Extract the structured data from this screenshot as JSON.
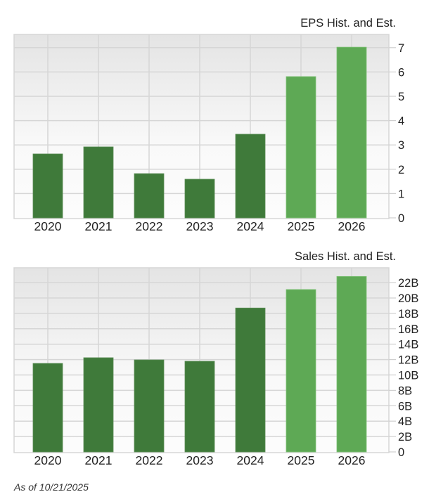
{
  "colors": {
    "historical_bar": "#3f7a3a",
    "estimate_bar": "#5ea955",
    "grid": "#d6d6d6",
    "bg_top": "#e4e4e4",
    "bg_bottom": "#fcfcfc"
  },
  "footer": {
    "as_of": "As of 10/21/2025"
  },
  "chart_data": [
    {
      "type": "bar",
      "title": "EPS Hist. and Est.",
      "xlabel": "",
      "ylabel": "",
      "categories": [
        "2020",
        "2021",
        "2022",
        "2023",
        "2024",
        "2025",
        "2026"
      ],
      "values": [
        2.63,
        2.92,
        1.82,
        1.59,
        3.44,
        5.81,
        7.02
      ],
      "estimate": [
        false,
        false,
        false,
        false,
        false,
        true,
        true
      ],
      "ylim": [
        0,
        7.5
      ],
      "yticks": [
        0,
        1,
        2,
        3,
        4,
        5,
        6,
        7
      ],
      "ytick_labels": [
        "0",
        "1",
        "2",
        "3",
        "4",
        "5",
        "6",
        "7"
      ],
      "grid": true,
      "y_axis_position": "right",
      "legend": null
    },
    {
      "type": "bar",
      "title": "Sales Hist. and Est.",
      "xlabel": "",
      "ylabel": "",
      "categories": [
        "2020",
        "2021",
        "2022",
        "2023",
        "2024",
        "2025",
        "2026"
      ],
      "values": [
        11.5,
        12.24,
        11.96,
        11.78,
        18.7,
        21.1,
        22.8
      ],
      "value_unit": "B",
      "estimate": [
        false,
        false,
        false,
        false,
        false,
        true,
        true
      ],
      "ylim": [
        0,
        23.9
      ],
      "yticks": [
        0,
        2,
        4,
        6,
        8,
        10,
        12,
        14,
        16,
        18,
        20,
        22
      ],
      "ytick_labels": [
        "0",
        "2B",
        "4B",
        "6B",
        "8B",
        "10B",
        "12B",
        "14B",
        "16B",
        "18B",
        "20B",
        "22B"
      ],
      "grid": true,
      "y_axis_position": "right",
      "legend": null
    }
  ]
}
